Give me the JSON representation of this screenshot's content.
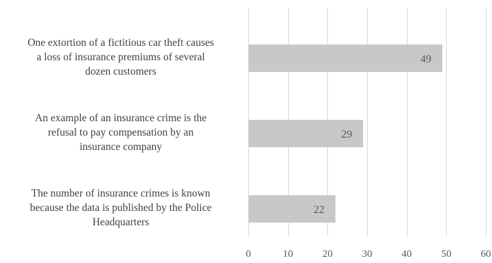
{
  "chart_data": {
    "type": "bar",
    "orientation": "horizontal",
    "categories": [
      "One extortion of a fictitious car theft causes a loss of insurance premiums of several dozen customers",
      "An example of an insurance crime is the refusal to pay compensation by an insurance company",
      "The number of insurance crimes is known because the data is published by the Police Headquarters"
    ],
    "category_lines": [
      [
        "One extortion of a fictitious car theft causes",
        "a loss of insurance premiums of several",
        "dozen customers"
      ],
      [
        "An example of an insurance crime is the",
        "refusal to pay compensation by an",
        "insurance company"
      ],
      [
        "The number of insurance crimes is known",
        "because the data is published by the Police",
        "Headquarters"
      ]
    ],
    "values": [
      49,
      29,
      22
    ],
    "data_labels": [
      "49",
      "29",
      "22"
    ],
    "xticks": [
      "0",
      "10",
      "20",
      "30",
      "40",
      "50",
      "60"
    ],
    "xlim": [
      0,
      60
    ],
    "grid": true,
    "title": "",
    "xlabel": "",
    "ylabel": "",
    "colors": {
      "bar": "#c8c8c8",
      "grid": "#d9d9d9",
      "text": "#595959"
    }
  }
}
